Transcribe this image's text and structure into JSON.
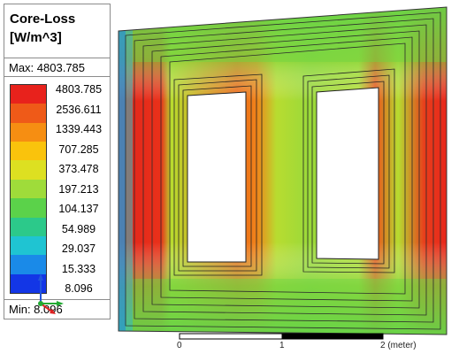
{
  "legend": {
    "title_line1": "Core-Loss",
    "title_line2": "[W/m^3]",
    "max_text": "Max: 4803.785",
    "min_text": "Min: 8.096",
    "levels": [
      "4803.785",
      "2536.611",
      "1339.443",
      "707.285",
      "373.478",
      "197.213",
      "104.137",
      "54.989",
      "29.037",
      "15.333",
      "8.096"
    ],
    "colors": [
      "#e8221c",
      "#ef5a18",
      "#f68e12",
      "#fac30c",
      "#dde021",
      "#9fdc3a",
      "#5bd24a",
      "#2cc98a",
      "#1fc4d2",
      "#1a8ae8",
      "#1336e6"
    ]
  },
  "scale_bar": {
    "labels": [
      "0",
      "1",
      "2 (meter)"
    ]
  }
}
